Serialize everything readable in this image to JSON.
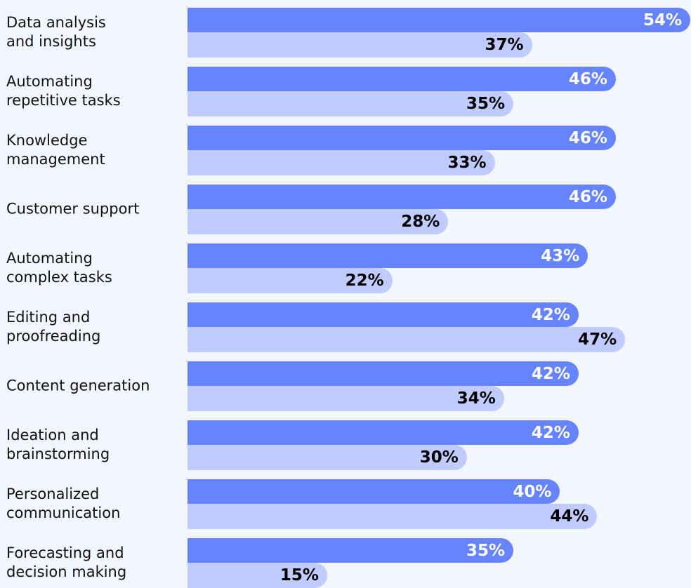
{
  "chart_data": {
    "type": "bar",
    "orientation": "horizontal",
    "categories": [
      "Data analysis\nand insights",
      "Automating\nrepetitive tasks",
      "Knowledge\nmanagement",
      "Customer support",
      "Automating\ncomplex tasks",
      "Editing and\nproofreading",
      "Content generation",
      "Ideation and\nbrainstorming",
      "Personalized\ncommunication",
      "Forecasting and\ndecision making"
    ],
    "series": [
      {
        "color": "#6684ff",
        "label_color": "#ffffff",
        "values": [
          54,
          46,
          46,
          46,
          43,
          42,
          42,
          42,
          40,
          35
        ],
        "value_labels": [
          "54%",
          "46%",
          "46%",
          "46%",
          "43%",
          "42%",
          "42%",
          "42%",
          "40%",
          "35%"
        ]
      },
      {
        "color": "#c0cbff",
        "label_color": "#000000",
        "values": [
          37,
          35,
          33,
          28,
          22,
          47,
          34,
          30,
          44,
          15
        ],
        "value_labels": [
          "37%",
          "35%",
          "33%",
          "28%",
          "22%",
          "47%",
          "34%",
          "30%",
          "44%",
          "15%"
        ]
      }
    ]
  }
}
